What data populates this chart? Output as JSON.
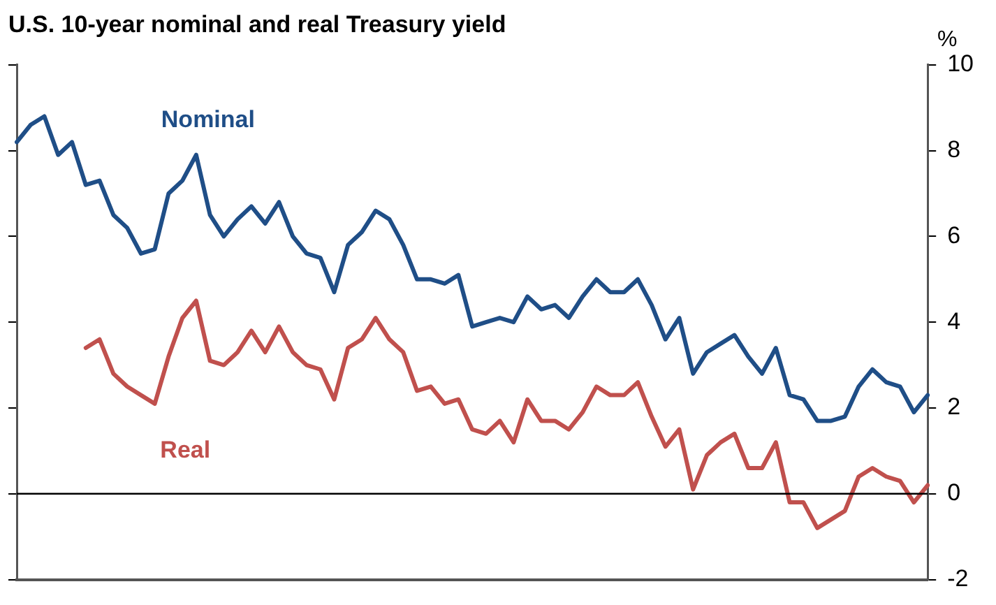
{
  "chart_data": {
    "type": "line",
    "title": "U.S. 10-year nominal and real Treasury yield",
    "ylabel": "%",
    "categories": [
      null,
      null,
      null,
      null,
      null,
      null,
      null,
      null,
      null,
      null,
      null,
      null,
      null,
      null,
      null,
      null,
      null,
      null,
      null,
      null,
      null,
      null,
      null,
      null,
      null,
      null,
      null,
      null,
      null,
      null,
      null,
      null,
      null,
      null,
      null,
      null,
      null,
      null,
      null,
      null,
      null,
      null,
      null,
      null,
      null,
      null,
      null,
      null,
      null,
      null,
      null,
      null,
      null,
      null,
      null,
      null,
      null,
      null,
      null,
      null,
      null,
      null,
      null,
      null,
      null,
      null,
      null
    ],
    "series": [
      {
        "name": "Nominal",
        "color": "#1f4e87",
        "values": [
          8.2,
          8.6,
          8.8,
          7.9,
          8.2,
          7.2,
          7.3,
          6.5,
          6.2,
          5.6,
          5.7,
          7.0,
          7.3,
          7.9,
          6.5,
          6.0,
          6.4,
          6.7,
          6.3,
          6.8,
          6.0,
          5.6,
          5.5,
          4.7,
          5.8,
          6.1,
          6.6,
          6.4,
          5.8,
          5.0,
          5.0,
          4.9,
          5.1,
          3.9,
          4.0,
          4.1,
          4.0,
          4.6,
          4.3,
          4.4,
          4.1,
          4.6,
          5.0,
          4.7,
          4.7,
          5.0,
          4.4,
          3.6,
          4.1,
          2.8,
          3.3,
          3.5,
          3.7,
          3.2,
          2.8,
          3.4,
          2.3,
          2.2,
          1.7,
          1.7,
          1.8,
          2.5,
          2.9,
          2.6,
          2.5,
          1.9,
          2.3
        ]
      },
      {
        "name": "Real",
        "color": "#c0504d",
        "values": [
          null,
          null,
          null,
          null,
          null,
          3.4,
          3.6,
          2.8,
          2.5,
          2.3,
          2.1,
          3.2,
          4.1,
          4.5,
          3.1,
          3.0,
          3.3,
          3.8,
          3.3,
          3.9,
          3.3,
          3.0,
          2.9,
          2.2,
          3.4,
          3.6,
          4.1,
          3.6,
          3.3,
          2.4,
          2.5,
          2.1,
          2.2,
          1.5,
          1.4,
          1.7,
          1.2,
          2.2,
          1.7,
          1.7,
          1.5,
          1.9,
          2.5,
          2.3,
          2.3,
          2.6,
          1.8,
          1.1,
          1.5,
          0.1,
          0.9,
          1.2,
          1.4,
          0.6,
          0.6,
          1.2,
          -0.2,
          -0.2,
          -0.8,
          -0.6,
          -0.4,
          0.4,
          0.6,
          0.4,
          0.3,
          -0.2,
          0.2
        ]
      }
    ],
    "ylim": [
      -2,
      10
    ],
    "yticks": [
      -2,
      0,
      2,
      4,
      6,
      8,
      10
    ],
    "ref_lines": [
      {
        "axis": "y",
        "value": 0,
        "color": "#000000"
      }
    ],
    "tick_labels": "y",
    "grid": false,
    "legend": false,
    "marker": "none",
    "line_style": "solid"
  }
}
